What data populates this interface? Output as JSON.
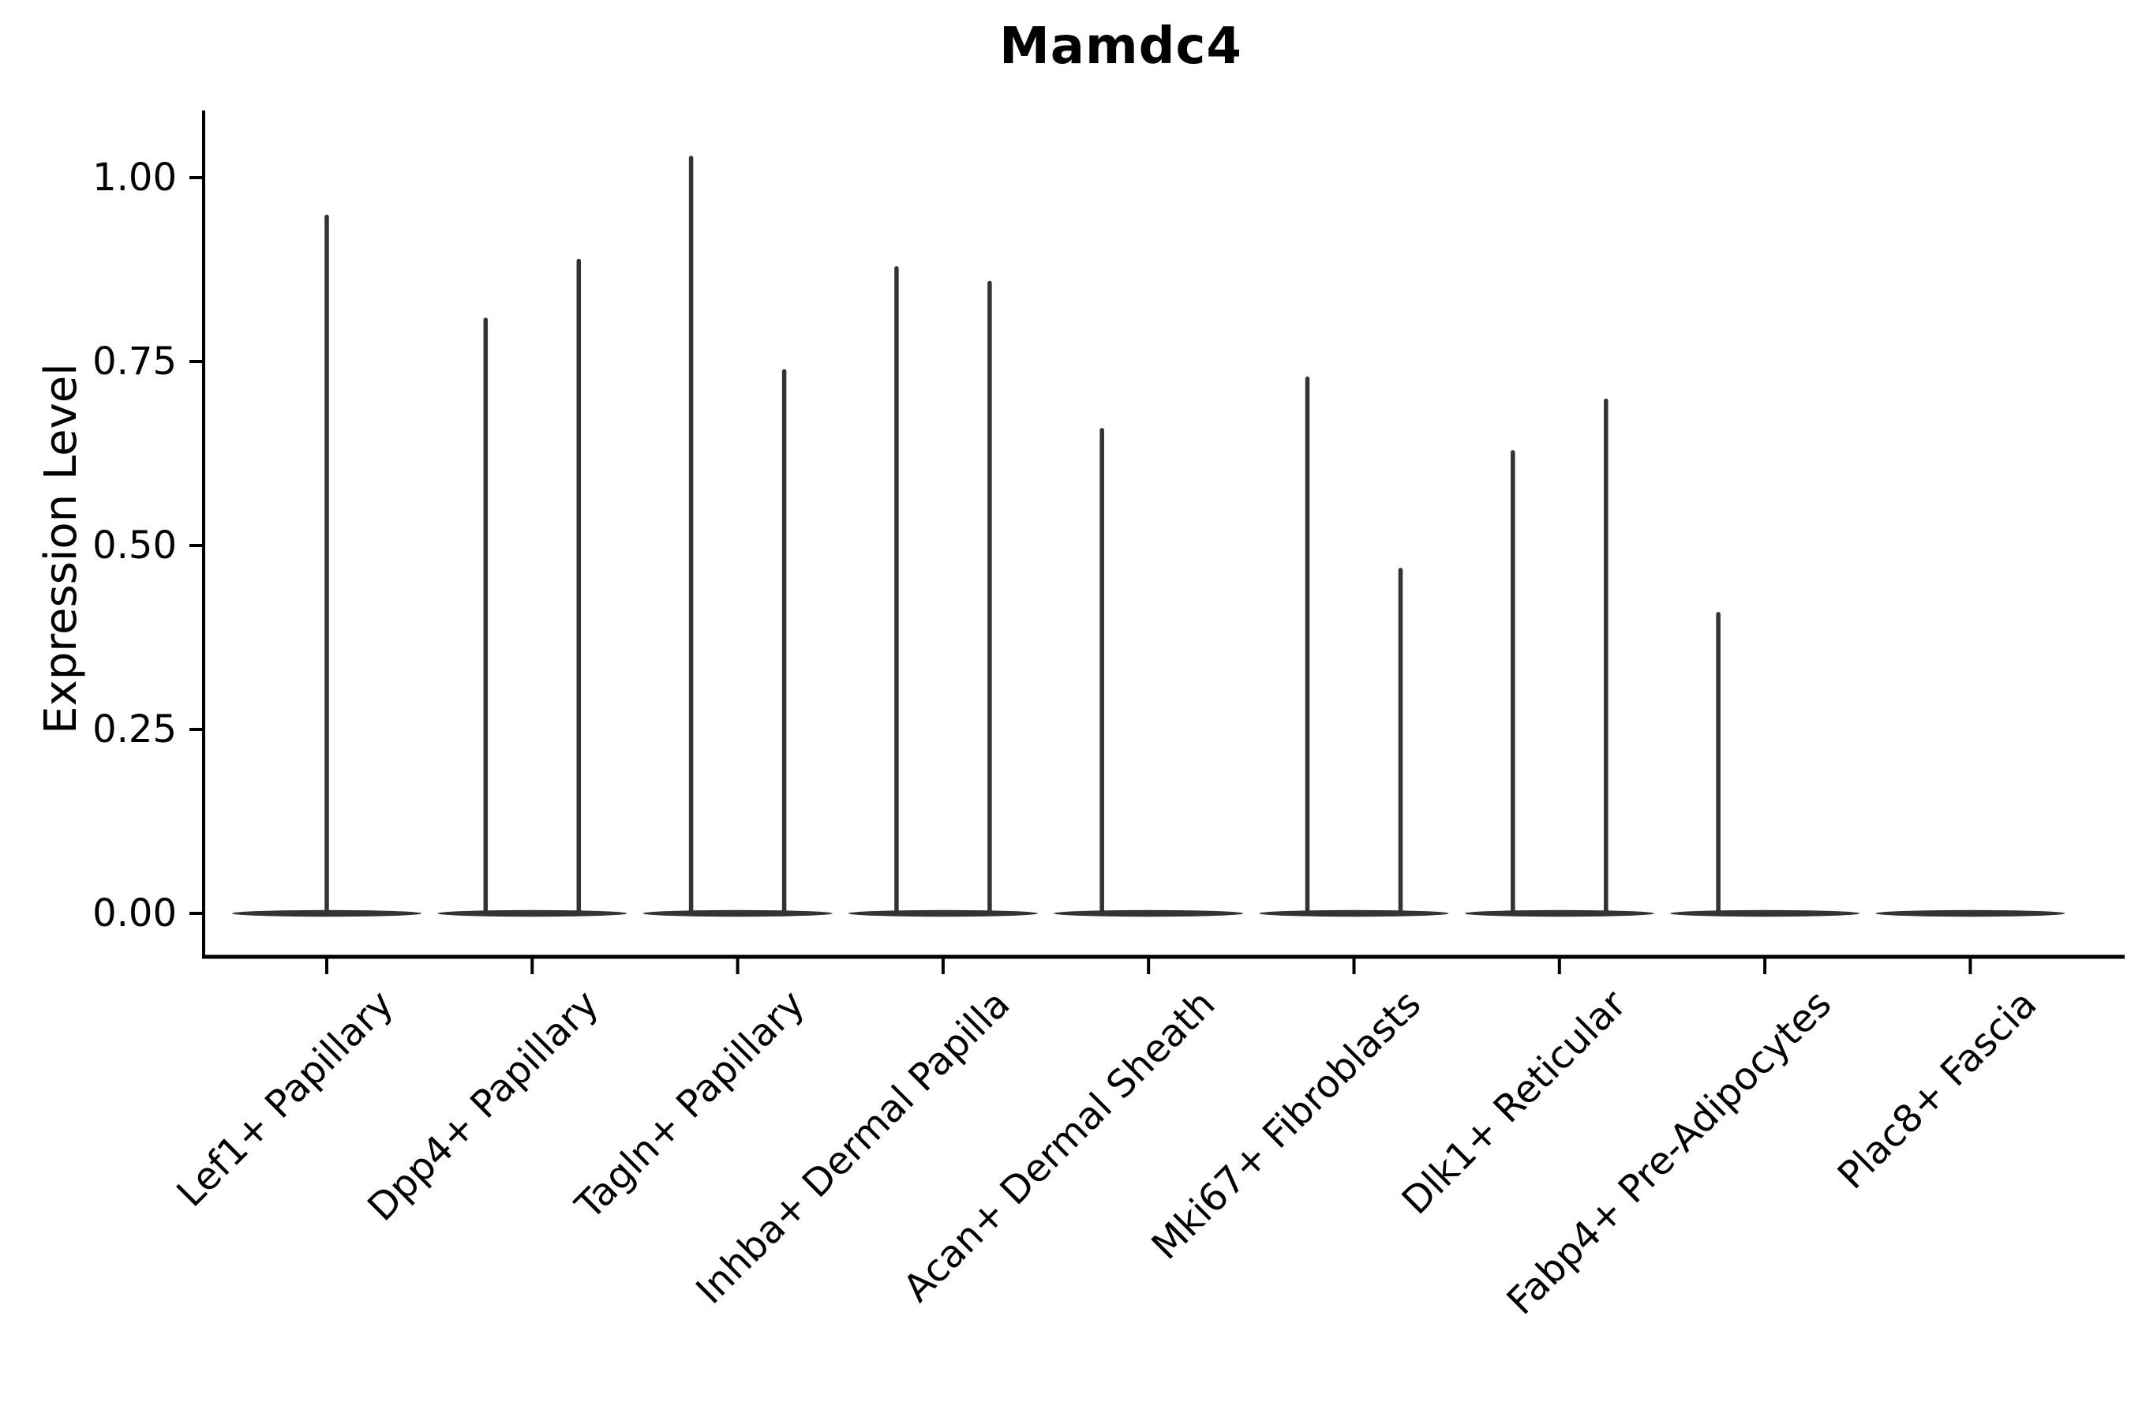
{
  "title": "Mamdc4",
  "y_axis": {
    "label": "Expression Level"
  },
  "colors": {
    "violin": "#333333",
    "axis": "#000000",
    "text": "#000000",
    "background": "#ffffff"
  },
  "chart_data": {
    "type": "violin",
    "title": "Mamdc4",
    "xlabel": "",
    "ylabel": "Expression Level",
    "ylim": [
      -0.05,
      1.08
    ],
    "yticks": [
      0.0,
      0.25,
      0.5,
      0.75,
      1.0
    ],
    "ytick_labels": [
      "0.00",
      "0.25",
      "0.50",
      "0.75",
      "1.00"
    ],
    "grid": false,
    "legend": false,
    "description": "Zero-inflated violin plot of Mamdc4 expression per fibroblast cluster; each violin collapses to a flat bar at 0 with thin vertical spikes reaching the maximum expression of rare positive cells.",
    "categories": [
      "Lef1+ Papillary",
      "Dpp4+ Papillary",
      "Tagln+ Papillary",
      "Inhba+ Dermal Papilla",
      "Acan+ Dermal Sheath",
      "Mki67+ Fibroblasts",
      "Dlk1+ Reticular",
      "Fabp4+ Pre-Adipocytes",
      "Plac8+ Fascia"
    ],
    "violins": [
      {
        "category": "Lef1+ Papillary",
        "baseline_value": 0.0,
        "spikes": [
          {
            "offset": 0.0,
            "max": 0.95
          }
        ]
      },
      {
        "category": "Dpp4+ Papillary",
        "baseline_value": 0.0,
        "spikes": [
          {
            "offset": -0.23,
            "max": 0.81
          },
          {
            "offset": 0.23,
            "max": 0.89
          }
        ]
      },
      {
        "category": "Tagln+ Papillary",
        "baseline_value": 0.0,
        "spikes": [
          {
            "offset": -0.23,
            "max": 1.03
          },
          {
            "offset": 0.23,
            "max": 0.74
          }
        ]
      },
      {
        "category": "Inhba+ Dermal Papilla",
        "baseline_value": 0.0,
        "spikes": [
          {
            "offset": -0.23,
            "max": 0.88
          },
          {
            "offset": 0.23,
            "max": 0.86
          }
        ]
      },
      {
        "category": "Acan+ Dermal Sheath",
        "baseline_value": 0.0,
        "spikes": [
          {
            "offset": -0.23,
            "max": 0.66
          }
        ]
      },
      {
        "category": "Mki67+ Fibroblasts",
        "baseline_value": 0.0,
        "spikes": [
          {
            "offset": -0.23,
            "max": 0.73
          },
          {
            "offset": 0.23,
            "max": 0.47
          }
        ]
      },
      {
        "category": "Dlk1+ Reticular",
        "baseline_value": 0.0,
        "spikes": [
          {
            "offset": -0.23,
            "max": 0.63
          },
          {
            "offset": 0.23,
            "max": 0.7
          }
        ]
      },
      {
        "category": "Fabp4+ Pre-Adipocytes",
        "baseline_value": 0.0,
        "spikes": [
          {
            "offset": -0.23,
            "max": 0.41
          }
        ]
      },
      {
        "category": "Plac8+ Fascia",
        "baseline_value": 0.0,
        "spikes": []
      }
    ]
  }
}
